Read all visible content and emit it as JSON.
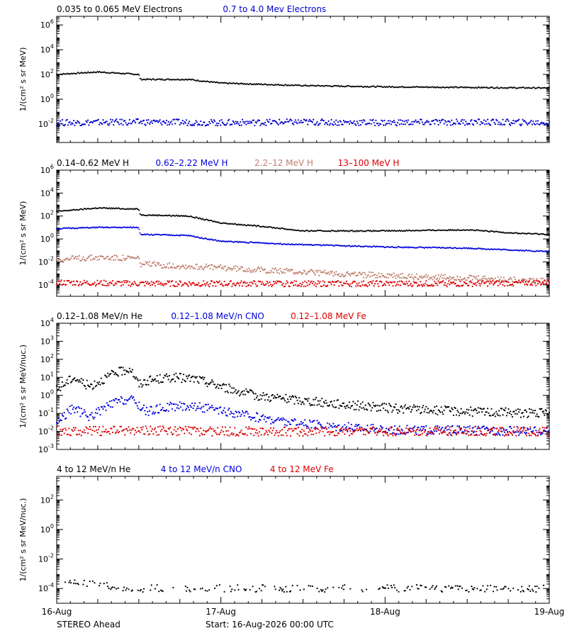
{
  "figure": {
    "footer_left": "STEREO Ahead",
    "footer_center": "Start: 16-Aug-2026 00:00 UTC",
    "x_ticks": [
      "16-Aug",
      "17-Aug",
      "18-Aug",
      "19-Aug"
    ]
  },
  "chart_data": [
    {
      "type": "scatter",
      "panel": "electrons",
      "ylabel": "1/(cm² s sr MeV)",
      "y_scale": "log",
      "ylim_exp": [
        -3.5,
        6.7
      ],
      "y_tick_exponents": [
        -2,
        0,
        2,
        4,
        6
      ],
      "x_unit": "days since 16-Aug-2026 00:00 UTC",
      "xlim": [
        0,
        3
      ],
      "series": [
        {
          "name": "0.035 to 0.065 MeV Electrons",
          "color": "#000000",
          "x": [
            0,
            0.25,
            0.5,
            0.51,
            0.8,
            1.0,
            1.25,
            1.5,
            2.0,
            2.5,
            3.0
          ],
          "log10_y": [
            2.0,
            2.2,
            2.0,
            1.6,
            1.6,
            1.3,
            1.2,
            1.1,
            1.0,
            0.95,
            0.9
          ]
        },
        {
          "name": "0.7 to 4.0 Mev Electrons",
          "color": "#0000cc",
          "x": [
            0,
            0.5,
            1.0,
            1.5,
            2.0,
            2.5,
            3.0
          ],
          "log10_y": [
            -1.9,
            -1.85,
            -1.9,
            -1.85,
            -1.9,
            -1.85,
            -1.9
          ]
        }
      ]
    },
    {
      "type": "scatter",
      "panel": "protons",
      "ylabel": "1/(cm² s sr MeV)",
      "y_scale": "log",
      "ylim_exp": [
        -5,
        6
      ],
      "y_tick_exponents": [
        -4,
        -2,
        0,
        2,
        4,
        6
      ],
      "x_unit": "days since 16-Aug-2026 00:00 UTC",
      "xlim": [
        0,
        3
      ],
      "series": [
        {
          "name": "0.14–0.62 MeV H",
          "color": "#000000",
          "x": [
            0,
            0.25,
            0.5,
            0.51,
            0.8,
            1.0,
            1.25,
            1.5,
            2.0,
            2.5,
            2.8,
            3.0
          ],
          "log10_y": [
            2.4,
            2.7,
            2.6,
            2.1,
            2.0,
            1.4,
            1.1,
            0.7,
            0.7,
            0.8,
            0.5,
            0.4
          ]
        },
        {
          "name": "0.62–2.22 MeV H",
          "color": "#0000dd",
          "x": [
            0,
            0.25,
            0.5,
            0.51,
            0.8,
            1.0,
            1.5,
            2.0,
            2.5,
            3.0
          ],
          "log10_y": [
            0.9,
            1.0,
            1.0,
            0.4,
            0.3,
            -0.2,
            -0.5,
            -0.7,
            -0.8,
            -1.1
          ]
        },
        {
          "name": "2.2–12 MeV H",
          "color": "#c08070",
          "x": [
            0,
            0.25,
            0.5,
            0.51,
            1.0,
            1.5,
            2.0,
            2.5,
            3.0
          ],
          "log10_y": [
            -1.8,
            -1.6,
            -1.7,
            -2.2,
            -2.5,
            -2.9,
            -3.2,
            -3.4,
            -3.7
          ]
        },
        {
          "name": "13–100 MeV H",
          "color": "#dd0000",
          "x": [
            0,
            0.5,
            1.0,
            1.5,
            2.0,
            2.5,
            3.0
          ],
          "log10_y": [
            -3.8,
            -3.9,
            -3.9,
            -3.9,
            -3.9,
            -3.9,
            -3.8
          ]
        }
      ]
    },
    {
      "type": "scatter",
      "panel": "heavy-ions-low",
      "ylabel": "1/(cm² s sr MeV/nuc.)",
      "y_scale": "log",
      "ylim_exp": [
        -3,
        4
      ],
      "y_tick_exponents": [
        -3,
        -2,
        -1,
        0,
        1,
        2,
        3,
        4
      ],
      "x_unit": "days since 16-Aug-2026 00:00 UTC",
      "xlim": [
        0,
        3
      ],
      "series": [
        {
          "name": "0.12–1.08 MeV/n He",
          "color": "#000000",
          "x": [
            0,
            0.1,
            0.2,
            0.35,
            0.45,
            0.5,
            0.55,
            0.7,
            0.85,
            1.0,
            1.2,
            1.5,
            2.0,
            2.5,
            3.0
          ],
          "log10_y": [
            0.3,
            1.0,
            0.5,
            1.2,
            1.5,
            0.6,
            0.8,
            1.0,
            0.9,
            0.5,
            0.0,
            -0.3,
            -0.7,
            -0.9,
            -1.0
          ]
        },
        {
          "name": "0.12–1.08 MeV/n CNO",
          "color": "#0000dd",
          "x": [
            0,
            0.1,
            0.2,
            0.35,
            0.45,
            0.55,
            0.7,
            0.85,
            1.0,
            1.5,
            2.0,
            2.5,
            3.0
          ],
          "log10_y": [
            -1.5,
            -0.7,
            -1.2,
            -0.4,
            -0.2,
            -0.9,
            -0.6,
            -0.6,
            -0.9,
            -1.6,
            -1.9,
            -1.95,
            -2.0
          ]
        },
        {
          "name": "0.12–1.08 MeV Fe",
          "color": "#dd0000",
          "x": [
            0,
            0.5,
            1.0,
            1.5,
            2.0,
            2.5,
            3.0
          ],
          "log10_y": [
            -2.0,
            -1.95,
            -2.0,
            -2.0,
            -2.0,
            -2.0,
            -2.0
          ]
        }
      ]
    },
    {
      "type": "scatter",
      "panel": "heavy-ions-high",
      "ylabel": "1/(cm² s sr MeV/nuc.)",
      "y_scale": "log",
      "ylim_exp": [
        -5,
        3.6
      ],
      "y_tick_exponents": [
        -4,
        -2,
        0,
        2
      ],
      "x_unit": "days since 16-Aug-2026 00:00 UTC",
      "xlim": [
        0,
        3
      ],
      "series": [
        {
          "name": "4 to 12 MeV/n He",
          "color": "#000000",
          "x": [
            0,
            0.05,
            0.5,
            1.0,
            1.5,
            2.0,
            2.5,
            3.0
          ],
          "log10_y": [
            -4.0,
            -3.6,
            -4.0,
            -4.0,
            -4.0,
            -4.0,
            -4.0,
            -4.0
          ]
        },
        {
          "name": "4 to 12 MeV/n CNO",
          "color": "#0000dd",
          "x": [],
          "log10_y": []
        },
        {
          "name": "4 to 12 MeV Fe",
          "color": "#dd0000",
          "x": [],
          "log10_y": []
        }
      ]
    }
  ]
}
